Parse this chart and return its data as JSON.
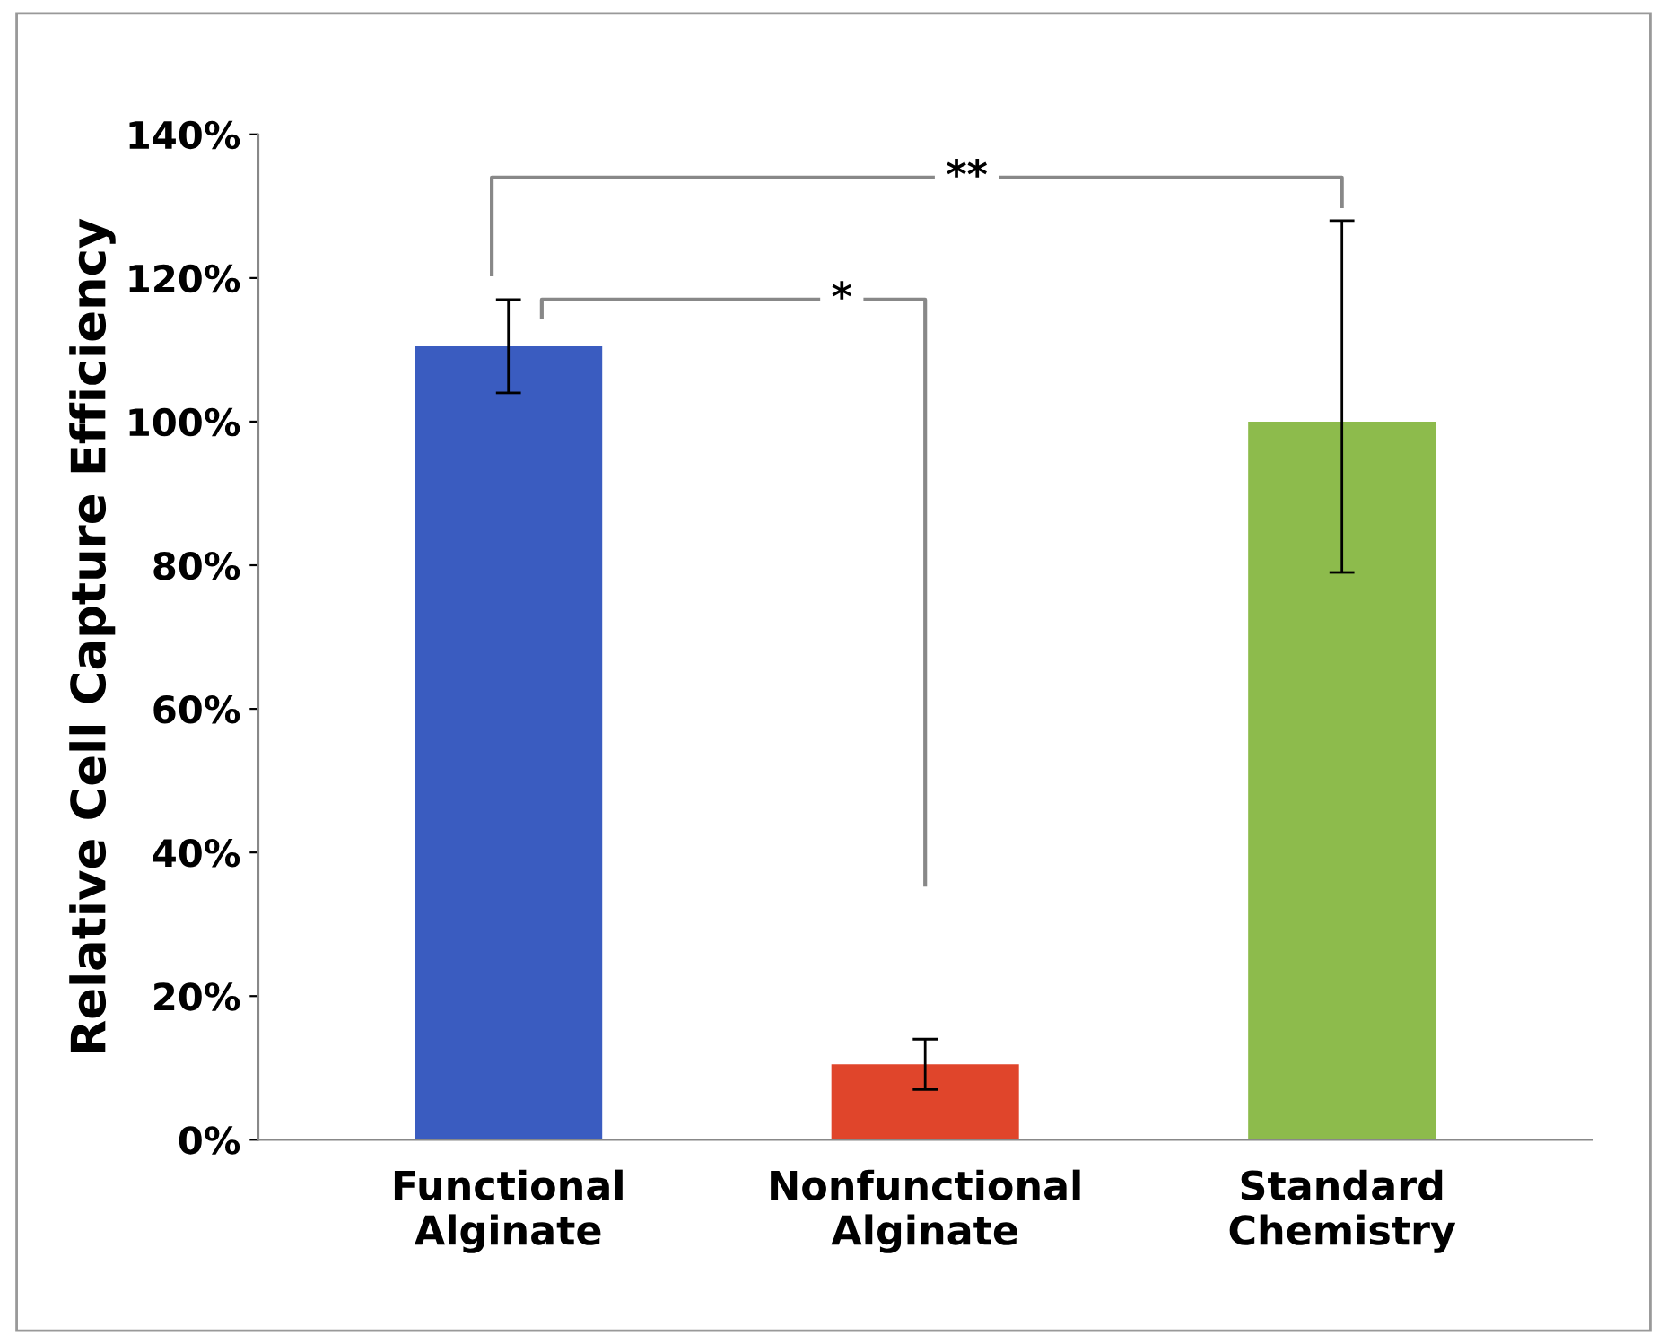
{
  "chart_data": {
    "type": "bar",
    "ylabel": "Relative Cell Capture Efficiency",
    "categories": [
      "Functional\nAlginate",
      "Nonfunctional\nAlginate",
      "Standard\nChemistry"
    ],
    "values": [
      110.5,
      10.5,
      100
    ],
    "colors": [
      "#3a5cc0",
      "#e0452b",
      "#8dbb4c"
    ],
    "errors": [
      [
        104,
        117
      ],
      [
        7,
        14
      ],
      [
        79,
        128
      ]
    ],
    "ylim": [
      0,
      140
    ],
    "yticks": [
      {
        "value": 0,
        "label": "0%"
      },
      {
        "value": 20,
        "label": "20%"
      },
      {
        "value": 40,
        "label": "40%"
      },
      {
        "value": 60,
        "label": "60%"
      },
      {
        "value": 80,
        "label": "80%"
      },
      {
        "value": 100,
        "label": "100%"
      },
      {
        "value": 120,
        "label": "120%"
      },
      {
        "value": 140,
        "label": "140%"
      }
    ],
    "grid": false,
    "annotations": [
      "*",
      "**"
    ]
  }
}
